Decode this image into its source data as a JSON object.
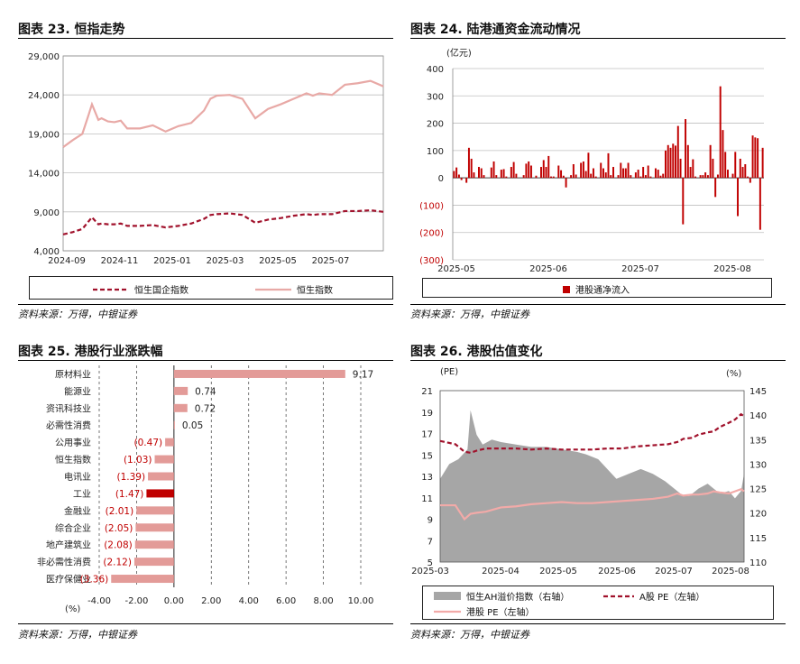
{
  "panels": {
    "p23": {
      "title": "图表 23.  恒指走势",
      "source": "资料来源：万得，中银证券",
      "legend": [
        "恒生国企指数",
        "恒生指数"
      ]
    },
    "p24": {
      "title": "图表 24.  陆港通资金流动情况",
      "source": "资料来源：万得，中银证券",
      "unit": "(亿元)",
      "legend": [
        "港股通净流入"
      ]
    },
    "p25": {
      "title": "图表 25.  港股行业涨跌幅",
      "source": "资料来源：万得，中银证券",
      "unit": "(%)"
    },
    "p26": {
      "title": "图表 26.  港股估值变化",
      "source": "资料来源：万得，中银证券",
      "left_unit": "(PE)",
      "right_unit": "(%)",
      "legend": [
        "恒生AH溢价指数（右轴）",
        "A股 PE（左轴）",
        "港股 PE（左轴）"
      ]
    }
  },
  "colors": {
    "hsi": "#e8a9a6",
    "hscei": "#a1122c",
    "flow": "#c00000",
    "bar_pos": "#e39b98",
    "bar_hl": "#c00000",
    "neg_label": "#c00000",
    "area": "#a6a6a6",
    "a_pe": "#a1122c",
    "hk_pe": "#f2aaa8"
  },
  "chart_data": [
    {
      "id": "hsi_trend",
      "type": "line",
      "x_ticks": [
        "2024-09",
        "2024-11",
        "2025-01",
        "2025-03",
        "2025-05",
        "2025-07"
      ],
      "y_ticks": [
        "4,000",
        "9,000",
        "14,000",
        "19,000",
        "24,000",
        "29,000"
      ],
      "ylim": [
        4000,
        29000
      ],
      "series": [
        {
          "name": "恒生指数",
          "x": [
            0,
            3,
            6,
            8,
            9,
            11,
            12,
            14,
            16,
            18,
            20,
            24,
            28,
            32,
            36,
            40,
            44,
            46,
            48,
            52,
            56,
            60,
            62,
            64,
            68,
            72,
            76,
            78,
            80,
            84,
            88,
            92,
            96,
            100
          ],
          "values": [
            17300,
            18200,
            19000,
            21500,
            22800,
            20800,
            21000,
            20600,
            20500,
            20700,
            19700,
            19700,
            20100,
            19300,
            20000,
            20400,
            22000,
            23500,
            23900,
            24000,
            23500,
            21000,
            21600,
            22200,
            22800,
            23500,
            24200,
            23900,
            24200,
            24000,
            25300,
            25500,
            25800,
            25100
          ]
        },
        {
          "name": "恒生国企指数",
          "x": [
            0,
            3,
            6,
            8,
            9,
            11,
            12,
            14,
            16,
            18,
            20,
            24,
            28,
            32,
            36,
            40,
            44,
            46,
            48,
            52,
            56,
            60,
            62,
            64,
            68,
            72,
            76,
            78,
            80,
            84,
            88,
            92,
            96,
            100
          ],
          "values": [
            6100,
            6400,
            6800,
            7800,
            8300,
            7400,
            7500,
            7400,
            7400,
            7500,
            7200,
            7200,
            7300,
            7000,
            7200,
            7500,
            8100,
            8600,
            8700,
            8800,
            8600,
            7600,
            7800,
            8000,
            8200,
            8500,
            8700,
            8600,
            8700,
            8700,
            9100,
            9100,
            9200,
            9000
          ]
        }
      ]
    },
    {
      "id": "southbound_flow",
      "type": "bar",
      "x_ticks": [
        "2025-05",
        "2025-06",
        "2025-07",
        "2025-08"
      ],
      "y_ticks": [
        "400",
        "300",
        "200",
        "100",
        "0",
        "(100)",
        "(200)",
        "(300)"
      ],
      "ylim": [
        -300,
        400
      ],
      "series": [
        {
          "name": "港股通净流入",
          "values": [
            25,
            38,
            12,
            -8,
            0,
            -18,
            110,
            70,
            20,
            0,
            40,
            35,
            10,
            0,
            0,
            38,
            60,
            10,
            0,
            30,
            32,
            5,
            0,
            40,
            58,
            15,
            0,
            0,
            10,
            52,
            60,
            45,
            0,
            8,
            0,
            40,
            65,
            40,
            80,
            5,
            5,
            0,
            45,
            28,
            8,
            -35,
            0,
            10,
            50,
            12,
            0,
            55,
            60,
            25,
            92,
            15,
            35,
            5,
            0,
            55,
            35,
            20,
            90,
            10,
            40,
            0,
            10,
            55,
            35,
            35,
            55,
            10,
            0,
            20,
            30,
            5,
            40,
            10,
            45,
            5,
            0,
            35,
            30,
            8,
            15,
            100,
            120,
            110,
            125,
            118,
            190,
            70,
            -170,
            215,
            120,
            40,
            68,
            5,
            0,
            10,
            10,
            20,
            10,
            120,
            70,
            -70,
            12,
            335,
            175,
            95,
            30,
            0,
            15,
            95,
            -140,
            70,
            40,
            50,
            5,
            -18,
            155,
            148,
            145,
            -190,
            110
          ]
        }
      ]
    },
    {
      "id": "sector_returns",
      "type": "bar",
      "orientation": "horizontal",
      "categories": [
        "原材料业",
        "能源业",
        "资讯科技业",
        "必需性消费",
        "公用事业",
        "恒生指数",
        "电讯业",
        "工业",
        "金融业",
        "综合企业",
        "地产建筑业",
        "非必需性消费",
        "医疗保健业"
      ],
      "labels": [
        "9.17",
        "0.74",
        "0.72",
        "0.05",
        "(0.47)",
        "(1.03)",
        "(1.39)",
        "(1.47)",
        "(2.01)",
        "(2.05)",
        "(2.08)",
        "(2.12)",
        "(3.36)"
      ],
      "values": [
        9.17,
        0.74,
        0.72,
        0.05,
        -0.47,
        -1.03,
        -1.39,
        -1.47,
        -2.01,
        -2.05,
        -2.08,
        -2.12,
        -3.36
      ],
      "highlight_index": 7,
      "x_ticks": [
        "-4.00",
        "-2.00",
        "0.00",
        "2.00",
        "4.00",
        "6.00",
        "8.00",
        "10.00"
      ],
      "xlim": [
        -4,
        10
      ]
    },
    {
      "id": "hk_valuation",
      "type": "line",
      "x_ticks": [
        "2025-03",
        "2025-04",
        "2025-05",
        "2025-06",
        "2025-07",
        "2025-08"
      ],
      "y_left_ticks": [
        "5",
        "7",
        "9",
        "11",
        "13",
        "15",
        "17",
        "19",
        "21"
      ],
      "y_right_ticks": [
        "110",
        "115",
        "120",
        "125",
        "130",
        "135",
        "140",
        "145"
      ],
      "ylim_left": [
        5,
        21
      ],
      "ylim_right": [
        110,
        145
      ],
      "series": [
        {
          "name": "恒生AH溢价指数（右轴）",
          "axis": "right",
          "type": "area",
          "x": [
            0,
            3,
            6,
            9,
            10,
            12,
            14,
            17,
            20,
            25,
            30,
            35,
            40,
            45,
            48,
            52,
            55,
            58,
            62,
            66,
            70,
            74,
            78,
            80,
            82,
            85,
            88,
            90,
            92,
            95,
            97,
            99,
            100
          ],
          "values": [
            127,
            130,
            131,
            133,
            141,
            136,
            134,
            135,
            134.5,
            134,
            133.5,
            133.5,
            133,
            132.5,
            132,
            131,
            129,
            127,
            128,
            129,
            128,
            126.5,
            124.5,
            123.5,
            123.5,
            125,
            126,
            125,
            124,
            124.5,
            123,
            124.5,
            128
          ]
        },
        {
          "name": "A股 PE（左轴）",
          "axis": "left",
          "x": [
            0,
            5,
            8,
            10,
            12,
            15,
            20,
            25,
            30,
            35,
            40,
            45,
            50,
            55,
            60,
            65,
            70,
            75,
            78,
            80,
            83,
            85,
            88,
            90,
            92,
            95,
            97,
            99,
            100
          ],
          "values": [
            16.3,
            16.0,
            15.3,
            15.2,
            15.4,
            15.6,
            15.6,
            15.6,
            15.5,
            15.6,
            15.5,
            15.5,
            15.5,
            15.6,
            15.6,
            15.8,
            15.9,
            16.0,
            16.2,
            16.5,
            16.6,
            16.9,
            17.1,
            17.2,
            17.6,
            18.0,
            18.3,
            18.8,
            18.6
          ]
        },
        {
          "name": "港股 PE（左轴）",
          "axis": "left",
          "x": [
            0,
            5,
            8,
            10,
            12,
            15,
            20,
            25,
            30,
            35,
            40,
            45,
            50,
            55,
            60,
            65,
            70,
            75,
            78,
            80,
            83,
            85,
            88,
            90,
            92,
            95,
            97,
            99,
            100
          ],
          "values": [
            10.3,
            10.3,
            9.0,
            9.5,
            9.6,
            9.7,
            10.1,
            10.2,
            10.4,
            10.5,
            10.6,
            10.5,
            10.5,
            10.6,
            10.7,
            10.8,
            10.9,
            11.1,
            11.4,
            11.2,
            11.3,
            11.3,
            11.4,
            11.6,
            11.5,
            11.4,
            11.6,
            11.8,
            11.6
          ]
        }
      ]
    }
  ]
}
